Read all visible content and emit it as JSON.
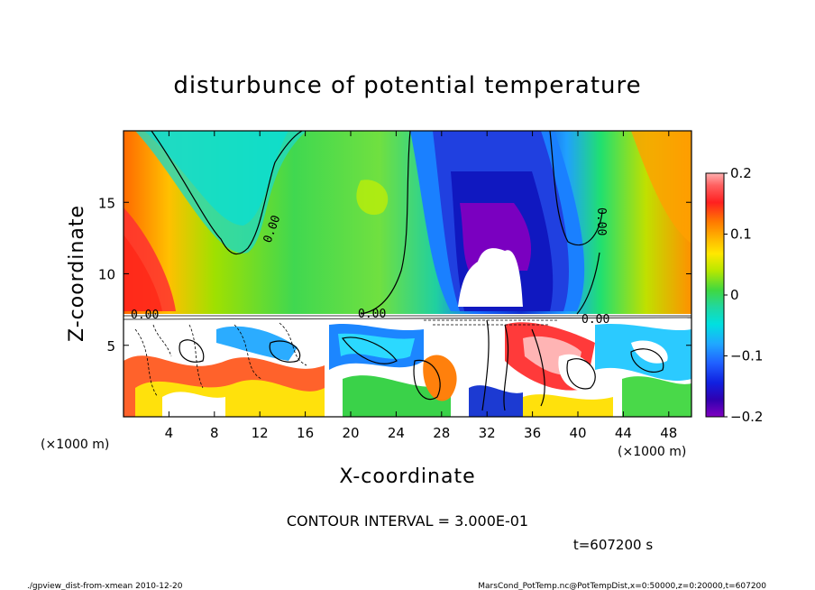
{
  "chart_data": {
    "type": "heatmap",
    "title": "disturbunce of potential temperature",
    "xlabel": "X-coordinate",
    "ylabel": "Z-coordinate",
    "x_unit": "(×1000 m)",
    "z_unit": "(×1000 m)",
    "xlim": [
      0,
      50
    ],
    "ylim": [
      0,
      20
    ],
    "x_ticks": [
      4,
      8,
      12,
      16,
      20,
      24,
      28,
      32,
      36,
      40,
      44,
      48
    ],
    "y_ticks": [
      5,
      10,
      15
    ],
    "colorbar": {
      "min": -0.2,
      "max": 0.2,
      "ticks": [
        {
          "value": 0.2,
          "label": "0.2"
        },
        {
          "value": 0.1,
          "label": "0.1"
        },
        {
          "value": 0.0,
          "label": "0"
        },
        {
          "value": -0.1,
          "label": "−0.1"
        },
        {
          "value": -0.2,
          "label": "−0.2"
        }
      ]
    },
    "contour_labels": [
      "0.00",
      "0.00",
      "0.00",
      "0.00",
      "0.00"
    ],
    "contour_interval_text": "CONTOUR INTERVAL = 3.000E-01",
    "time_text": "t=607200 s",
    "footer_left": "./gpview_dist-from-xmean  2010-12-20",
    "footer_right": "MarsCond_PotTemp.nc@PotTempDist,x=0:50000,z=0:20000,t=607200",
    "grid": false,
    "legend": "colorbar-right"
  }
}
